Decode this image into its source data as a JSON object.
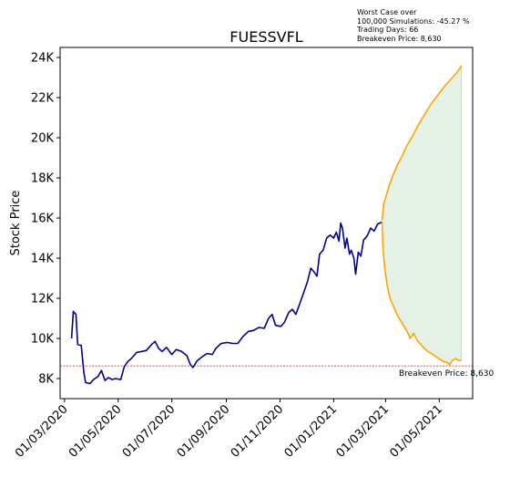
{
  "chart_data": {
    "type": "line",
    "title": "FUESSVFL",
    "xlabel": "",
    "ylabel": "Stock Price",
    "x_ticks": [
      "01/03/2020",
      "01/05/2020",
      "01/07/2020",
      "01/09/2020",
      "01/11/2020",
      "01/01/2021",
      "01/03/2021",
      "01/05/2021"
    ],
    "y_ticks": [
      "8K",
      "10K",
      "12K",
      "14K",
      "16K",
      "18K",
      "20K",
      "22K",
      "24K"
    ],
    "ylim": [
      7000,
      24500
    ],
    "xlim": [
      "2020-02-25",
      "2021-06-08"
    ],
    "grid": false,
    "annotation": {
      "line1": "Worst Case over",
      "line2": "100,000 Simulations: -45.27 %",
      "line3": "Trading Days: 66",
      "line4": "Breakeven Price: 8,630"
    },
    "breakeven": {
      "value": 8630,
      "label": "Breakeven Price: 8,630",
      "color": "#ff0000"
    },
    "series": [
      {
        "color": "#00008b",
        "points": [
          [
            "2020-03-09",
            10000
          ],
          [
            "2020-03-11",
            11350
          ],
          [
            "2020-03-14",
            11200
          ],
          [
            "2020-03-16",
            9700
          ],
          [
            "2020-03-20",
            9650
          ],
          [
            "2020-03-23",
            8300
          ],
          [
            "2020-03-25",
            7800
          ],
          [
            "2020-03-30",
            7750
          ],
          [
            "2020-04-03",
            7950
          ],
          [
            "2020-04-08",
            8100
          ],
          [
            "2020-04-12",
            8400
          ],
          [
            "2020-04-16",
            7900
          ],
          [
            "2020-04-20",
            8050
          ],
          [
            "2020-04-24",
            7950
          ],
          [
            "2020-04-28",
            8000
          ],
          [
            "2020-05-04",
            7950
          ],
          [
            "2020-05-08",
            8600
          ],
          [
            "2020-05-12",
            8850
          ],
          [
            "2020-05-16",
            9000
          ],
          [
            "2020-05-22",
            9300
          ],
          [
            "2020-05-28",
            9350
          ],
          [
            "2020-06-02",
            9400
          ],
          [
            "2020-06-08",
            9700
          ],
          [
            "2020-06-12",
            9850
          ],
          [
            "2020-06-16",
            9500
          ],
          [
            "2020-06-20",
            9350
          ],
          [
            "2020-06-25",
            9550
          ],
          [
            "2020-07-01",
            9200
          ],
          [
            "2020-07-06",
            9450
          ],
          [
            "2020-07-12",
            9350
          ],
          [
            "2020-07-18",
            9150
          ],
          [
            "2020-07-22",
            8700
          ],
          [
            "2020-07-25",
            8550
          ],
          [
            "2020-07-30",
            8900
          ],
          [
            "2020-08-05",
            9100
          ],
          [
            "2020-08-10",
            9250
          ],
          [
            "2020-08-16",
            9200
          ],
          [
            "2020-08-20",
            9500
          ],
          [
            "2020-08-26",
            9750
          ],
          [
            "2020-09-02",
            9800
          ],
          [
            "2020-09-08",
            9750
          ],
          [
            "2020-09-14",
            9750
          ],
          [
            "2020-09-20",
            10100
          ],
          [
            "2020-09-26",
            10350
          ],
          [
            "2020-10-02",
            10400
          ],
          [
            "2020-10-08",
            10550
          ],
          [
            "2020-10-14",
            10500
          ],
          [
            "2020-10-19",
            11000
          ],
          [
            "2020-10-23",
            11200
          ],
          [
            "2020-10-27",
            10650
          ],
          [
            "2020-11-02",
            10600
          ],
          [
            "2020-11-06",
            10800
          ],
          [
            "2020-11-11",
            11300
          ],
          [
            "2020-11-15",
            11450
          ],
          [
            "2020-11-19",
            11200
          ],
          [
            "2020-11-24",
            11800
          ],
          [
            "2020-11-28",
            12300
          ],
          [
            "2020-12-02",
            12800
          ],
          [
            "2020-12-06",
            13500
          ],
          [
            "2020-12-10",
            13300
          ],
          [
            "2020-12-13",
            13100
          ],
          [
            "2020-12-16",
            14200
          ],
          [
            "2020-12-20",
            14400
          ],
          [
            "2020-12-24",
            15000
          ],
          [
            "2020-12-28",
            15150
          ],
          [
            "2021-01-01",
            15000
          ],
          [
            "2021-01-04",
            15300
          ],
          [
            "2021-01-07",
            14850
          ],
          [
            "2021-01-09",
            15750
          ],
          [
            "2021-01-11",
            15500
          ],
          [
            "2021-01-14",
            14500
          ],
          [
            "2021-01-16",
            15000
          ],
          [
            "2021-01-19",
            14200
          ],
          [
            "2021-01-21",
            14400
          ],
          [
            "2021-01-24",
            14000
          ],
          [
            "2021-01-26",
            13200
          ],
          [
            "2021-01-29",
            14300
          ],
          [
            "2021-02-01",
            14100
          ],
          [
            "2021-02-04",
            14900
          ],
          [
            "2021-02-08",
            15100
          ],
          [
            "2021-02-12",
            15500
          ],
          [
            "2021-02-16",
            15350
          ],
          [
            "2021-02-20",
            15700
          ],
          [
            "2021-02-25",
            15800
          ]
        ]
      },
      {
        "color": "#ffa500",
        "points": [
          [
            "2021-02-25",
            15900
          ],
          [
            "2021-02-27",
            16700
          ],
          [
            "2021-03-01",
            17000
          ],
          [
            "2021-03-05",
            17600
          ],
          [
            "2021-03-10",
            18200
          ],
          [
            "2021-03-15",
            18700
          ],
          [
            "2021-03-20",
            19100
          ],
          [
            "2021-03-25",
            19600
          ],
          [
            "2021-04-01",
            20100
          ],
          [
            "2021-04-08",
            20700
          ],
          [
            "2021-04-15",
            21200
          ],
          [
            "2021-04-22",
            21700
          ],
          [
            "2021-04-29",
            22100
          ],
          [
            "2021-05-06",
            22500
          ],
          [
            "2021-05-12",
            22800
          ],
          [
            "2021-05-18",
            23100
          ],
          [
            "2021-05-22",
            23300
          ],
          [
            "2021-05-25",
            23500
          ],
          [
            "2021-05-26",
            23600
          ]
        ]
      },
      {
        "color": "#ffa500",
        "points": [
          [
            "2021-02-25",
            15800
          ],
          [
            "2021-02-26",
            14500
          ],
          [
            "2021-02-28",
            13500
          ],
          [
            "2021-03-03",
            12600
          ],
          [
            "2021-03-06",
            12000
          ],
          [
            "2021-03-10",
            11600
          ],
          [
            "2021-03-14",
            11200
          ],
          [
            "2021-03-18",
            10900
          ],
          [
            "2021-03-22",
            10600
          ],
          [
            "2021-03-26",
            10300
          ],
          [
            "2021-03-29",
            10000
          ],
          [
            "2021-04-02",
            10250
          ],
          [
            "2021-04-06",
            9900
          ],
          [
            "2021-04-12",
            9600
          ],
          [
            "2021-04-18",
            9350
          ],
          [
            "2021-04-24",
            9200
          ],
          [
            "2021-04-30",
            9000
          ],
          [
            "2021-05-06",
            8850
          ],
          [
            "2021-05-10",
            8800
          ],
          [
            "2021-05-13",
            8700
          ],
          [
            "2021-05-16",
            8900
          ],
          [
            "2021-05-20",
            9000
          ],
          [
            "2021-05-23",
            8900
          ],
          [
            "2021-05-26",
            8900
          ]
        ]
      }
    ],
    "fill": {
      "color": "#2e8b2e",
      "opacity": 0.12
    }
  }
}
